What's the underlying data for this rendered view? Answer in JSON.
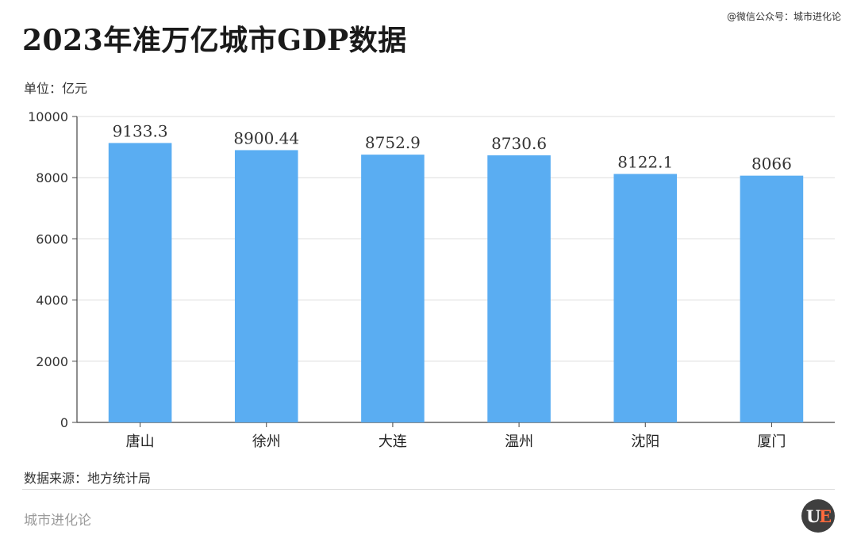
{
  "watermark": "@微信公众号：城市进化论",
  "title": "2023年准万亿城市GDP数据",
  "unit_label": "单位：亿元",
  "source": "数据来源：地方统计局",
  "footer_brand": "城市进化论",
  "logo": {
    "part1": "U",
    "part2": "E"
  },
  "colors": {
    "bar": "#5aadf2",
    "grid": "#dddddd",
    "axis": "#444444",
    "logo_bg": "#3f3f3f",
    "logo_accent": "#ff6a3d"
  },
  "chart_data": {
    "type": "bar",
    "categories": [
      "唐山",
      "徐州",
      "大连",
      "温州",
      "沈阳",
      "厦门"
    ],
    "values": [
      9133.3,
      8900.44,
      8752.9,
      8730.6,
      8122.1,
      8066
    ],
    "value_labels": [
      "9133.3",
      "8900.44",
      "8752.9",
      "8730.6",
      "8122.1",
      "8066"
    ],
    "ylim": [
      0,
      10000
    ],
    "yticks": [
      0,
      2000,
      4000,
      6000,
      8000,
      10000
    ],
    "grid": true,
    "xlabel": "",
    "ylabel": ""
  }
}
